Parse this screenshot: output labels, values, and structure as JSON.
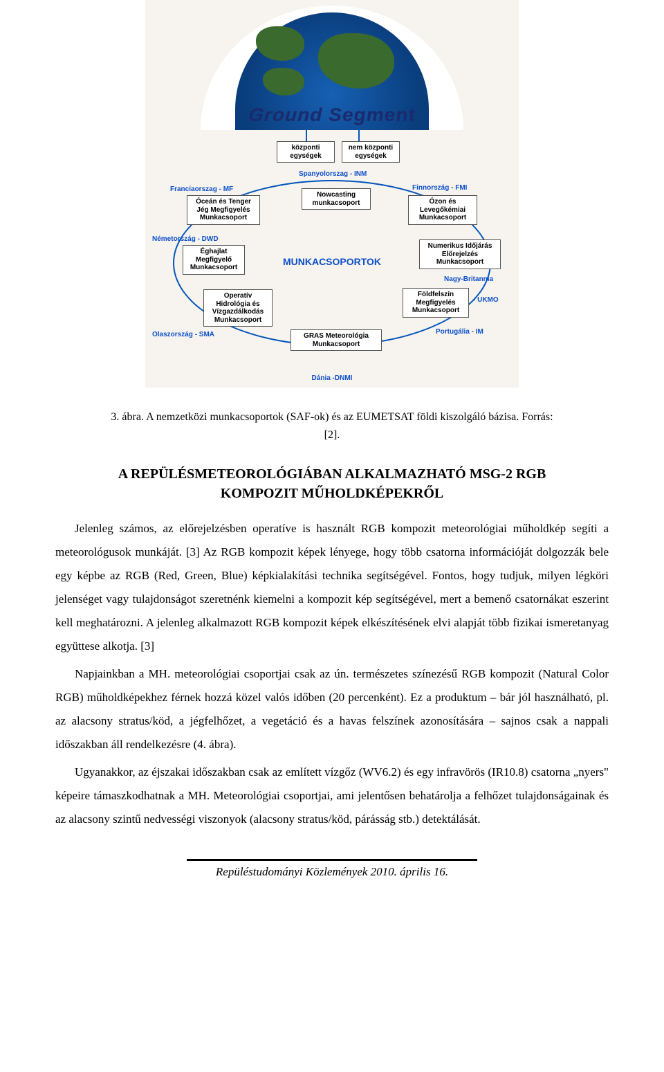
{
  "diagram": {
    "globe_label": "Ground Segment",
    "center_label": "MUNKACSOPORTOK",
    "top_boxes": [
      {
        "label": "központi\negységek"
      },
      {
        "label": "nem központi\negységek"
      }
    ],
    "country_Spanyol": "Spanyolorszag - INM",
    "country_Francia": "Franciaorszag - MF",
    "country_Finn": "Finnország - FMI",
    "country_Nemet": "Németország - DWD",
    "country_NagyBrit": "Nagy-Britannia",
    "country_UKMO": "- UKMO",
    "country_Olasz": "Olaszország - SMA",
    "country_Portugal": "Portugália - IM",
    "country_Dania": "Dánia -DNMI",
    "box_nowcasting": "Nowcasting\nmunkacsoport",
    "box_ocean": "Óceán és Tenger\nJég Megfigyelés\nMunkacsoport",
    "box_ozon": "Ózon és\nLevegőkémiai\nMunkacsoport",
    "box_eghajlat": "Éghajlat\nMegfigyelő\nMunkacsoport",
    "box_numerikus": "Numerikus Időjárás\nElőrejelzés\nMunkacsoport",
    "box_hidrologia": "Operatív\nHidrológia és\nVízgazdálkodás\nMunkacsoport",
    "box_foldfelszin": "Földfelszín\nMegfigyelés\nMunkacsoport",
    "box_gras": "GRAS Meteorológia\nMunkacsoport"
  },
  "caption": {
    "line1": "3. ábra. A nemzetközi munkacsoportok (SAF-ok) és az EUMETSAT földi kiszolgáló bázisa. Forrás:",
    "line2": "[2]."
  },
  "heading": {
    "line1": "A REPÜLÉSMETEOROLÓGIÁBAN ALKALMAZHATÓ MSG-2 RGB",
    "line2": "KOMPOZIT MŰHOLDKÉPEKRŐL"
  },
  "paragraphs": {
    "p1": "Jelenleg számos, az előrejelzésben operatíve is használt RGB kompozit meteorológiai műholdkép segíti a meteorológusok munkáját. [3] Az RGB kompozit képek lényege, hogy több csatorna információját dolgozzák bele egy képbe az RGB (Red, Green, Blue) képkialakítási technika segítségével. Fontos, hogy tudjuk, milyen légköri jelenséget vagy tulajdonságot szeretnénk kiemelni a kompozit kép segítségével, mert a bemenő csatornákat eszerint kell meghatározni. A jelenleg alkalmazott RGB kompozit képek elkészítésének elvi alapját több fizikai ismeretanyag együttese alkotja. [3]",
    "p2": "Napjainkban a MH. meteorológiai csoportjai csak az ún. természetes színezésű RGB kompozit (Natural Color RGB) műholdképekhez férnek hozzá közel valós időben (20 percenként). Ez a produktum – bár jól használható, pl. az alacsony stratus/köd, a jégfelhőzet, a vegetáció és a havas felszínek azonosítására – sajnos csak a nappali időszakban áll rendelkezésre (4. ábra).",
    "p3": "Ugyanakkor, az éjszakai időszakban csak az említett vízgőz (WV6.2) és egy infravörös (IR10.8) csatorna „nyers\" képeire támaszkodhatnak a MH. Meteorológiai csoportjai, ami jelentősen behatárolja a felhőzet tulajdonságainak és az alacsony szintű nedvességi viszonyok (alacsony stratus/köd, párásság stb.) detektálását."
  },
  "footer": "Repüléstudományi Közlemények 2010. április 16."
}
